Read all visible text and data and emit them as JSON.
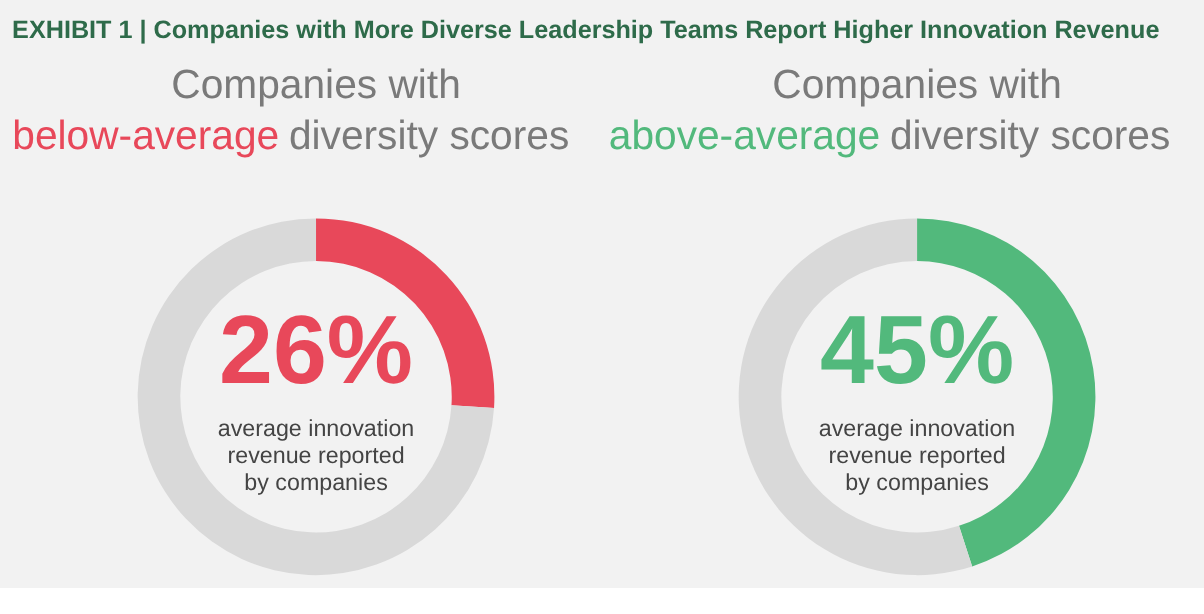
{
  "chart_data": [
    {
      "type": "donut",
      "title": "Companies with below-average diversity scores",
      "categories": [
        null,
        null
      ],
      "values": [
        26,
        74
      ],
      "colors": [
        "#e8485a",
        "#d9d9d9"
      ],
      "value_labels": [
        "26%",
        null
      ],
      "annotations": [
        "EXHIBIT 1 | Companies with More Diverse Leadership Teams Report Higher Innovation Revenue",
        "average innovation revenue reported by companies"
      ]
    },
    {
      "type": "donut",
      "title": "Companies with above-average diversity scores",
      "categories": [
        null,
        null
      ],
      "values": [
        45,
        55
      ],
      "colors": [
        "#52b97c",
        "#d9d9d9"
      ],
      "value_labels": [
        "45%",
        null
      ],
      "annotations": [
        "average innovation revenue reported by companies"
      ]
    }
  ]
}
